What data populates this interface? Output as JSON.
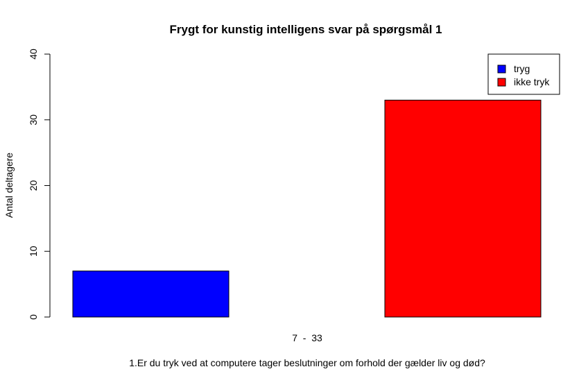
{
  "chart_data": {
    "type": "bar",
    "title": "Frygt for kunstig intelligens svar på spørgsmål 1",
    "xlabel": "1.Er du tryk ved at computere tager beslutninger om forhold der gælder liv og død?",
    "ylabel": "Antal deltagere",
    "sublabel": "7  -  33",
    "ylim": [
      0,
      40
    ],
    "yticks": [
      0,
      10,
      20,
      30,
      40
    ],
    "grid": false,
    "legend_position": "top-right",
    "series": [
      {
        "name": "tryg",
        "value": 7,
        "color": "#0000ff"
      },
      {
        "name": "ikke tryk",
        "value": 33,
        "color": "#ff0000"
      }
    ]
  }
}
